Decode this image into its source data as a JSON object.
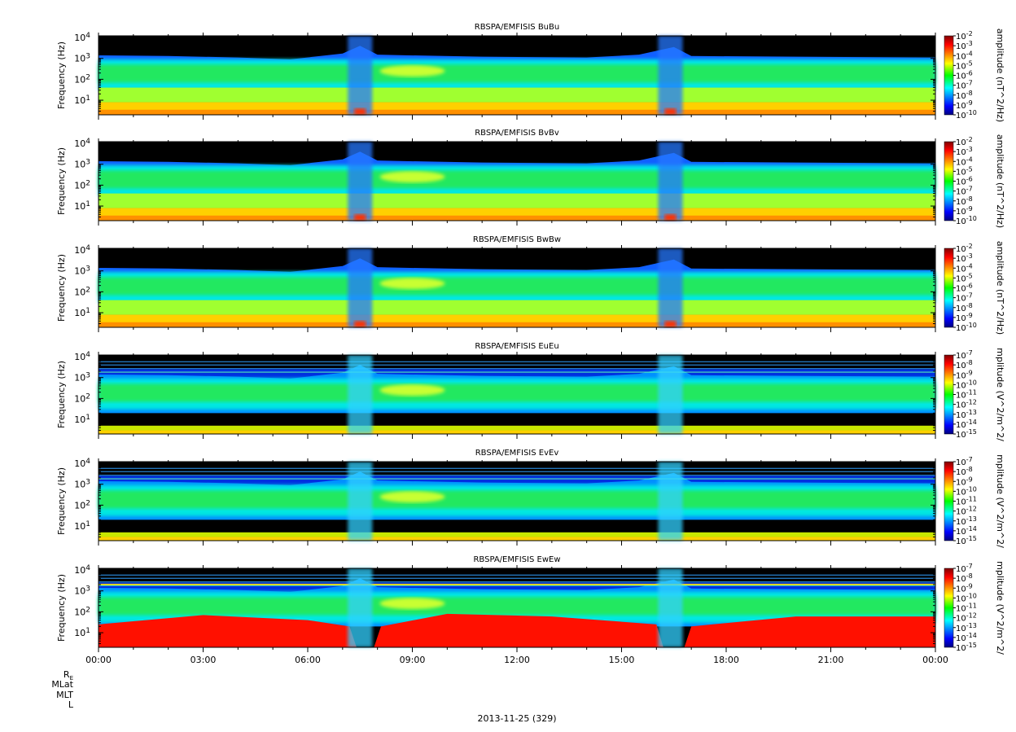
{
  "chart_data": [
    {
      "type": "heatmap",
      "title": "RBSPA/EMFISIS  BuBu",
      "ylabel": "Frequency (Hz)",
      "y_scale": "log",
      "ylim": [
        2,
        12000
      ],
      "y_ticks": [
        "10^1",
        "10^2",
        "10^3",
        "10^4"
      ],
      "colorbar_label": "amplitude (nT^2/Hz)",
      "colorbar_scale": "log",
      "colorbar_range": [
        1e-10,
        0.01
      ],
      "colorbar_ticks": [
        "10^-2",
        "10^-3",
        "10^-4",
        "10^-5",
        "10^-6",
        "10^-7",
        "10^-8",
        "10^-9",
        "10^-10"
      ]
    },
    {
      "type": "heatmap",
      "title": "RBSPA/EMFISIS  BvBv",
      "ylabel": "Frequency (Hz)",
      "y_scale": "log",
      "ylim": [
        2,
        12000
      ],
      "y_ticks": [
        "10^1",
        "10^2",
        "10^3",
        "10^4"
      ],
      "colorbar_label": "amplitude (nT^2/Hz)",
      "colorbar_scale": "log",
      "colorbar_range": [
        1e-10,
        0.01
      ],
      "colorbar_ticks": [
        "10^-2",
        "10^-3",
        "10^-4",
        "10^-5",
        "10^-6",
        "10^-7",
        "10^-8",
        "10^-9",
        "10^-10"
      ]
    },
    {
      "type": "heatmap",
      "title": "RBSPA/EMFISIS  BwBw",
      "ylabel": "Frequency (Hz)",
      "y_scale": "log",
      "ylim": [
        2,
        12000
      ],
      "y_ticks": [
        "10^1",
        "10^2",
        "10^3",
        "10^4"
      ],
      "colorbar_label": "amplitude (nT^2/Hz)",
      "colorbar_scale": "log",
      "colorbar_range": [
        1e-10,
        0.01
      ],
      "colorbar_ticks": [
        "10^-2",
        "10^-3",
        "10^-4",
        "10^-5",
        "10^-6",
        "10^-7",
        "10^-8",
        "10^-9",
        "10^-10"
      ]
    },
    {
      "type": "heatmap",
      "title": "RBSPA/EMFISIS  EuEu",
      "ylabel": "Frequency (Hz)",
      "y_scale": "log",
      "ylim": [
        2,
        12000
      ],
      "y_ticks": [
        "10^1",
        "10^2",
        "10^3",
        "10^4"
      ],
      "colorbar_label": "mplitude (V^2/m^2/",
      "colorbar_scale": "log",
      "colorbar_range": [
        1e-15,
        1e-07
      ],
      "colorbar_ticks": [
        "10^-7",
        "10^-8",
        "10^-9",
        "10^-10",
        "10^-11",
        "10^-12",
        "10^-13",
        "10^-14",
        "10^-15"
      ]
    },
    {
      "type": "heatmap",
      "title": "RBSPA/EMFISIS  EvEv",
      "ylabel": "Frequency (Hz)",
      "y_scale": "log",
      "ylim": [
        2,
        12000
      ],
      "y_ticks": [
        "10^1",
        "10^2",
        "10^3",
        "10^4"
      ],
      "colorbar_label": "mplitude (V^2/m^2/",
      "colorbar_scale": "log",
      "colorbar_range": [
        1e-15,
        1e-07
      ],
      "colorbar_ticks": [
        "10^-7",
        "10^-8",
        "10^-9",
        "10^-10",
        "10^-11",
        "10^-12",
        "10^-13",
        "10^-14",
        "10^-15"
      ]
    },
    {
      "type": "heatmap",
      "title": "RBSPA/EMFISIS  EwEw",
      "ylabel": "Frequency (Hz)",
      "y_scale": "log",
      "ylim": [
        2,
        12000
      ],
      "y_ticks": [
        "10^1",
        "10^2",
        "10^3",
        "10^4"
      ],
      "colorbar_label": "mplitude (V^2/m^2/",
      "colorbar_scale": "log",
      "colorbar_range": [
        1e-15,
        1e-07
      ],
      "colorbar_ticks": [
        "10^-7",
        "10^-8",
        "10^-9",
        "10^-10",
        "10^-11",
        "10^-12",
        "10^-13",
        "10^-14",
        "10^-15"
      ]
    }
  ],
  "x_axis": {
    "ticks": [
      "00:00",
      "03:00",
      "06:00",
      "09:00",
      "12:00",
      "15:00",
      "18:00",
      "21:00",
      "00:00"
    ],
    "range_hours": [
      0,
      24
    ]
  },
  "orbit_labels": [
    "R",
    "MLat",
    "MLT",
    "L"
  ],
  "orbit_label_subscript": "E",
  "date_label": "2013-11-25 (329)"
}
